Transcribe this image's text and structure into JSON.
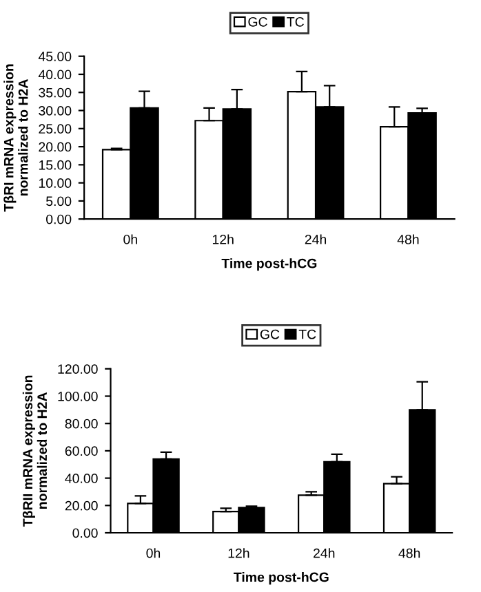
{
  "chart_data": [
    {
      "type": "bar",
      "categories": [
        "0h",
        "12h",
        "24h",
        "48h"
      ],
      "xlabel": "Time post-hCG",
      "ylabel": "TβRI mRNA expression\nnormalized to H2A",
      "legend": "top",
      "grid": false,
      "ylim": [
        0,
        45
      ],
      "yticks": [
        {
          "value": 0,
          "label": "0.00"
        },
        {
          "value": 5,
          "label": "5.00"
        },
        {
          "value": 10,
          "label": "10.00"
        },
        {
          "value": 15,
          "label": "15.00"
        },
        {
          "value": 20,
          "label": "20.00"
        },
        {
          "value": 25,
          "label": "25.00"
        },
        {
          "value": 30,
          "label": "30.00"
        },
        {
          "value": 35,
          "label": "35.00"
        },
        {
          "value": 40,
          "label": "40.00"
        },
        {
          "value": 45,
          "label": "45.00"
        }
      ],
      "series": [
        {
          "name": "GC",
          "color": "#ffffff",
          "values": [
            19.2,
            27.2,
            35.2,
            25.5
          ],
          "errors": [
            [
              19.2,
              19.5
            ],
            [
              27.2,
              30.7
            ],
            [
              35.2,
              40.8
            ],
            [
              25.5,
              31.0
            ]
          ]
        },
        {
          "name": "TC",
          "color": "#000000",
          "values": [
            30.7,
            30.4,
            31.0,
            29.3
          ],
          "errors": [
            [
              30.7,
              35.3
            ],
            [
              30.4,
              35.8
            ],
            [
              31.0,
              36.9
            ],
            [
              29.3,
              30.6
            ]
          ]
        }
      ]
    },
    {
      "type": "bar",
      "categories": [
        "0h",
        "12h",
        "24h",
        "48h"
      ],
      "xlabel": "Time post-hCG",
      "ylabel": "TβRII mRNA expression\nnormalized to H2A",
      "legend": "top",
      "grid": false,
      "ylim": [
        0,
        120
      ],
      "yticks": [
        {
          "value": 0,
          "label": "0.00"
        },
        {
          "value": 20,
          "label": "20.00"
        },
        {
          "value": 40,
          "label": "40.00"
        },
        {
          "value": 60,
          "label": "60.00"
        },
        {
          "value": 80,
          "label": "80.00"
        },
        {
          "value": 100,
          "label": "100.00"
        },
        {
          "value": 120,
          "label": "120.00"
        }
      ],
      "series": [
        {
          "name": "GC",
          "color": "#ffffff",
          "values": [
            21.5,
            15.5,
            27.5,
            36.0
          ],
          "errors": [
            [
              21.5,
              27.0
            ],
            [
              15.5,
              18.0
            ],
            [
              27.5,
              30.0
            ],
            [
              36.0,
              41.0
            ]
          ]
        },
        {
          "name": "TC",
          "color": "#000000",
          "values": [
            54.0,
            18.5,
            52.0,
            90.0
          ],
          "errors": [
            [
              54.0,
              59.0
            ],
            [
              18.5,
              19.5
            ],
            [
              52.0,
              57.5
            ],
            [
              90.0,
              110.5
            ]
          ]
        }
      ]
    }
  ]
}
